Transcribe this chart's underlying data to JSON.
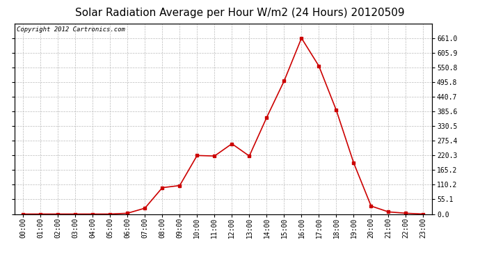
{
  "title": "Solar Radiation Average per Hour W/m2 (24 Hours) 20120509",
  "copyright_text": "Copyright 2012 Cartronics.com",
  "hours": [
    "00:00",
    "01:00",
    "02:00",
    "03:00",
    "04:00",
    "05:00",
    "06:00",
    "07:00",
    "08:00",
    "09:00",
    "10:00",
    "11:00",
    "12:00",
    "13:00",
    "14:00",
    "15:00",
    "16:00",
    "17:00",
    "18:00",
    "19:00",
    "20:00",
    "21:00",
    "22:00",
    "23:00"
  ],
  "values": [
    0.0,
    0.0,
    0.0,
    0.0,
    0.0,
    0.0,
    3.0,
    22.0,
    99.0,
    107.0,
    220.0,
    218.0,
    264.0,
    218.0,
    363.0,
    500.0,
    661.0,
    556.0,
    390.0,
    192.0,
    30.0,
    8.0,
    3.0,
    0.0
  ],
  "line_color": "#cc0000",
  "marker": "s",
  "marker_size": 2.5,
  "line_width": 1.2,
  "background_color": "#ffffff",
  "grid_color": "#bbbbbb",
  "ylim": [
    0.0,
    716.0
  ],
  "yticks": [
    0.0,
    55.1,
    110.2,
    165.2,
    220.3,
    275.4,
    330.5,
    385.6,
    440.7,
    495.8,
    550.8,
    605.9,
    661.0
  ],
  "title_fontsize": 11,
  "copyright_fontsize": 6.5,
  "tick_fontsize": 7,
  "figure_bg": "#ffffff"
}
